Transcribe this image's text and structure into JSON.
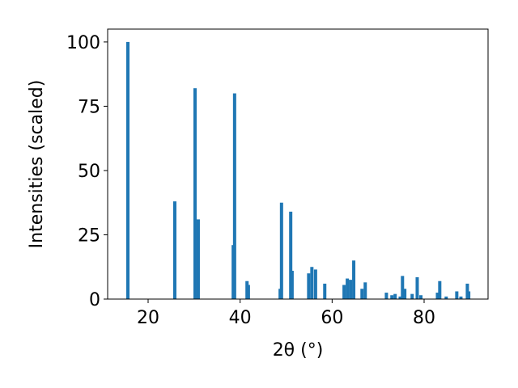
{
  "chart_data": {
    "type": "bar",
    "xlabel": "2θ (°)",
    "ylabel": "Intensities (scaled)",
    "color": "#1f77b4",
    "x": [
      15.6,
      25.8,
      30.2,
      30.9,
      38.5,
      38.8,
      41.5,
      41.8,
      48.7,
      49.0,
      51.0,
      51.3,
      54.9,
      55.6,
      56.4,
      58.4,
      62.6,
      63.3,
      64.0,
      64.7,
      66.5,
      67.2,
      71.8,
      73.0,
      73.7,
      74.8,
      75.3,
      75.8,
      77.4,
      78.5,
      79.3,
      82.9,
      83.4,
      84.8,
      87.1,
      88.0,
      89.4,
      89.7
    ],
    "values": [
      100,
      38,
      82,
      31,
      21,
      80,
      7,
      5.5,
      4,
      37.5,
      34,
      11,
      10,
      12.5,
      11.5,
      6,
      5.5,
      8,
      7.5,
      15,
      4,
      6.5,
      2.5,
      1.5,
      2,
      1,
      9,
      4,
      2,
      8.5,
      1.5,
      2.5,
      7,
      1,
      3,
      1,
      6,
      3
    ],
    "xlim": [
      11.2,
      93.9
    ],
    "ylim": [
      0,
      105
    ],
    "xticks": [
      20,
      40,
      60,
      80
    ],
    "yticks": [
      0,
      25,
      50,
      75,
      100
    ]
  }
}
